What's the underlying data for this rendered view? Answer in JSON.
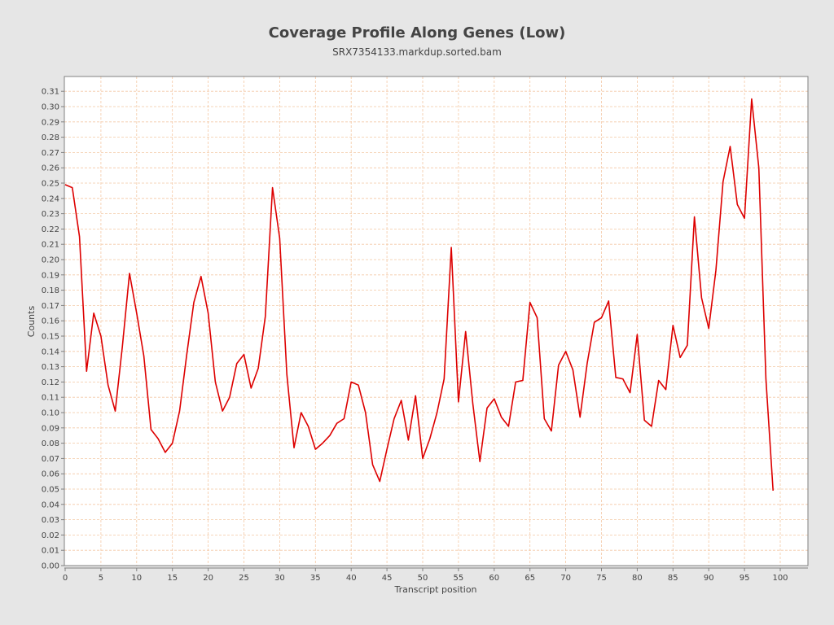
{
  "chart_data": {
    "type": "line",
    "title": "Coverage Profile Along Genes (Low)",
    "subtitle": "SRX7354133.markdup.sorted.bam",
    "xlabel": "Transcript position",
    "ylabel": "Counts",
    "xlim": [
      0,
      104
    ],
    "ylim": [
      0,
      0.32
    ],
    "xticks": [
      0,
      5,
      10,
      15,
      20,
      25,
      30,
      35,
      40,
      45,
      50,
      55,
      60,
      65,
      70,
      75,
      80,
      85,
      90,
      95,
      100
    ],
    "yticks": [
      "0.00",
      "0.01",
      "0.02",
      "0.03",
      "0.04",
      "0.05",
      "0.06",
      "0.07",
      "0.08",
      "0.09",
      "0.10",
      "0.11",
      "0.12",
      "0.13",
      "0.14",
      "0.15",
      "0.16",
      "0.17",
      "0.18",
      "0.19",
      "0.20",
      "0.21",
      "0.22",
      "0.23",
      "0.24",
      "0.25",
      "0.26",
      "0.27",
      "0.28",
      "0.29",
      "0.30",
      "0.31"
    ],
    "grid": true,
    "series": [
      {
        "color": "#dd0000",
        "x": [
          0,
          1,
          2,
          3,
          4,
          5,
          6,
          7,
          8,
          9,
          10,
          11,
          12,
          13,
          14,
          15,
          16,
          17,
          18,
          19,
          20,
          21,
          22,
          23,
          24,
          25,
          26,
          27,
          28,
          29,
          30,
          31,
          32,
          33,
          34,
          35,
          36,
          37,
          38,
          39,
          40,
          41,
          42,
          43,
          44,
          45,
          46,
          47,
          48,
          49,
          50,
          51,
          52,
          53,
          54,
          55,
          56,
          57,
          58,
          59,
          60,
          61,
          62,
          63,
          64,
          65,
          66,
          67,
          68,
          69,
          70,
          71,
          72,
          73,
          74,
          75,
          76,
          77,
          78,
          79,
          80,
          81,
          82,
          83,
          84,
          85,
          86,
          87,
          88,
          89,
          90,
          91,
          92,
          93,
          94,
          95,
          96,
          97,
          98,
          99
        ],
        "values": [
          0.249,
          0.247,
          0.215,
          0.127,
          0.165,
          0.15,
          0.118,
          0.101,
          0.143,
          0.191,
          0.165,
          0.137,
          0.089,
          0.083,
          0.074,
          0.08,
          0.101,
          0.138,
          0.172,
          0.189,
          0.165,
          0.12,
          0.101,
          0.11,
          0.132,
          0.138,
          0.116,
          0.129,
          0.163,
          0.247,
          0.214,
          0.125,
          0.077,
          0.1,
          0.091,
          0.076,
          0.08,
          0.085,
          0.093,
          0.096,
          0.12,
          0.118,
          0.1,
          0.066,
          0.055,
          0.076,
          0.096,
          0.108,
          0.082,
          0.111,
          0.07,
          0.083,
          0.1,
          0.122,
          0.208,
          0.107,
          0.153,
          0.106,
          0.068,
          0.103,
          0.109,
          0.097,
          0.091,
          0.12,
          0.121,
          0.172,
          0.162,
          0.096,
          0.088,
          0.131,
          0.14,
          0.128,
          0.097,
          0.132,
          0.159,
          0.162,
          0.173,
          0.123,
          0.122,
          0.113,
          0.151,
          0.095,
          0.091,
          0.121,
          0.115,
          0.157,
          0.136,
          0.144,
          0.228,
          0.175,
          0.155,
          0.193,
          0.251,
          0.274,
          0.236,
          0.227,
          0.305,
          0.26,
          0.122,
          0.049
        ]
      }
    ]
  }
}
